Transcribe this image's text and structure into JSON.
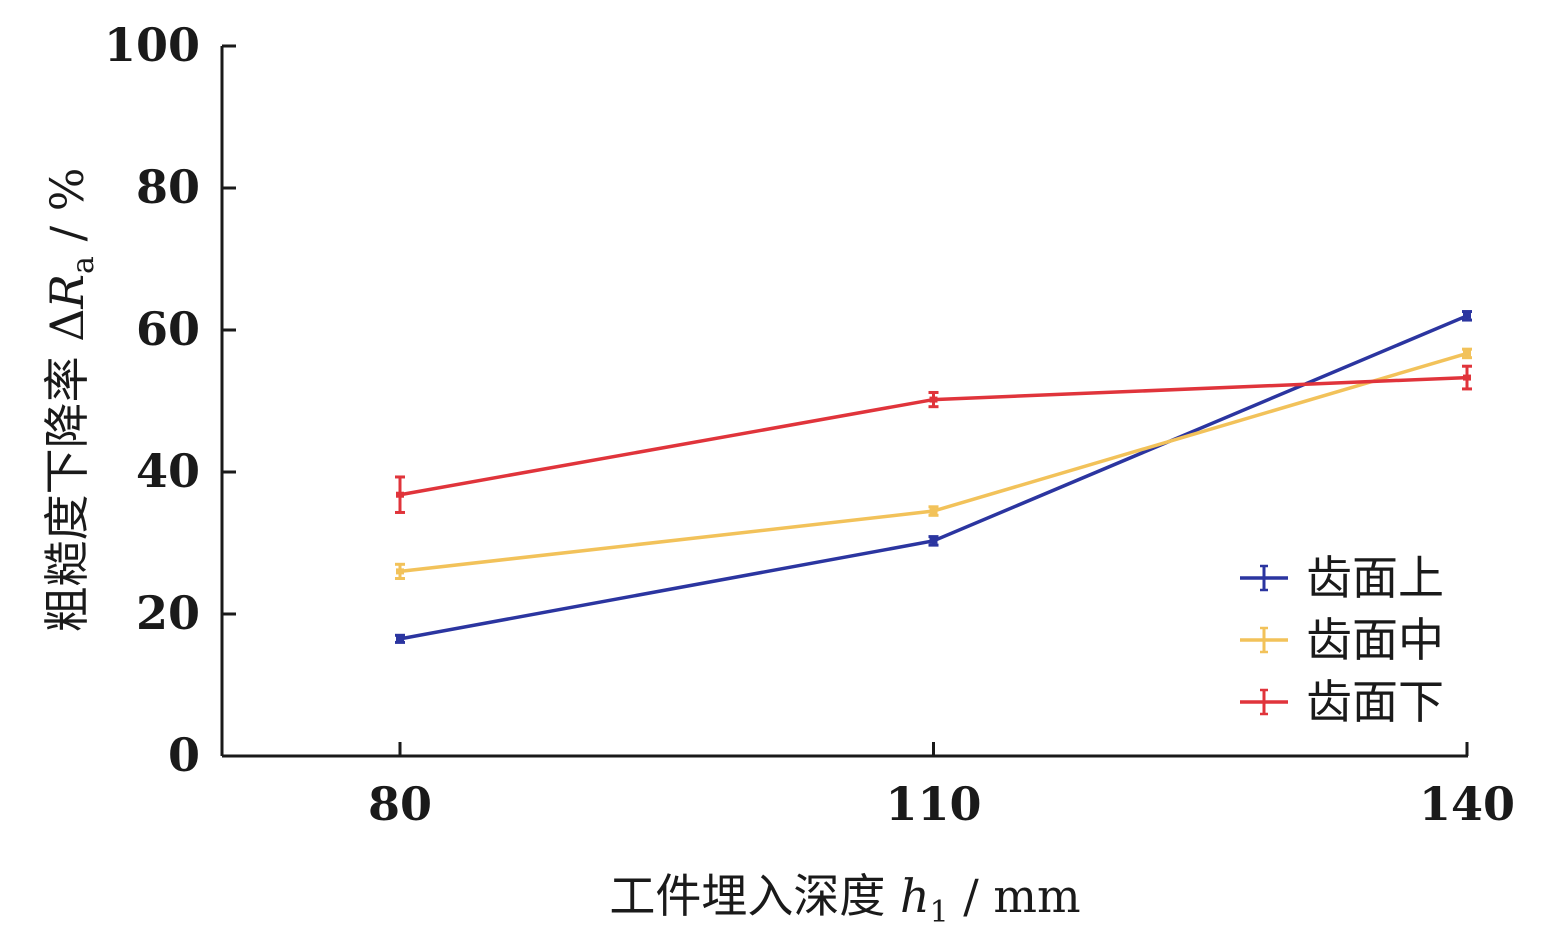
{
  "chart_data": {
    "type": "line",
    "xlabel": {
      "prefix": "工件埋入深度 ",
      "var": "h",
      "sub": "1",
      "unit": " / mm"
    },
    "ylabel": {
      "prefix": "粗糙度下降率 Δ",
      "var": "R",
      "sub": "a",
      "unit": " / %"
    },
    "x": [
      80,
      110,
      140
    ],
    "x_tick_labels": [
      "80",
      "110",
      "140"
    ],
    "ylim": [
      0,
      100
    ],
    "y_ticks": [
      0,
      20,
      40,
      60,
      80,
      100
    ],
    "y_tick_labels": [
      "0",
      "20",
      "40",
      "60",
      "80",
      "100"
    ],
    "legend_position": "bottom-right",
    "series": [
      {
        "name": "齿面上",
        "color": "#2b35a0",
        "values": [
          16.5,
          30.3,
          62.0
        ],
        "errors": [
          0.5,
          0.6,
          0.6
        ]
      },
      {
        "name": "齿面中",
        "color": "#f2c25a",
        "values": [
          26.0,
          34.5,
          56.7
        ],
        "errors": [
          1.0,
          0.6,
          0.6
        ]
      },
      {
        "name": "齿面下",
        "color": "#e0343b",
        "values": [
          36.8,
          50.2,
          53.3
        ],
        "errors": [
          2.5,
          1.0,
          1.6
        ]
      }
    ]
  }
}
